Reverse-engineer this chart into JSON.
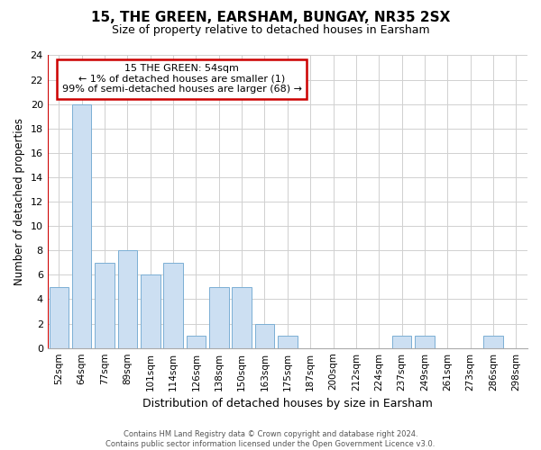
{
  "title": "15, THE GREEN, EARSHAM, BUNGAY, NR35 2SX",
  "subtitle": "Size of property relative to detached houses in Earsham",
  "xlabel": "Distribution of detached houses by size in Earsham",
  "ylabel": "Number of detached properties",
  "bar_labels": [
    "52sqm",
    "64sqm",
    "77sqm",
    "89sqm",
    "101sqm",
    "114sqm",
    "126sqm",
    "138sqm",
    "150sqm",
    "163sqm",
    "175sqm",
    "187sqm",
    "200sqm",
    "212sqm",
    "224sqm",
    "237sqm",
    "249sqm",
    "261sqm",
    "273sqm",
    "286sqm",
    "298sqm"
  ],
  "bar_values": [
    5,
    20,
    7,
    8,
    6,
    7,
    1,
    5,
    5,
    2,
    1,
    0,
    0,
    0,
    0,
    1,
    1,
    0,
    0,
    1,
    0
  ],
  "bar_color": "#ccdff2",
  "bar_edge_color": "#7bafd4",
  "red_line_x": 0,
  "red_line_color": "#cc0000",
  "ylim": [
    0,
    24
  ],
  "yticks": [
    0,
    2,
    4,
    6,
    8,
    10,
    12,
    14,
    16,
    18,
    20,
    22,
    24
  ],
  "annotation_title": "15 THE GREEN: 54sqm",
  "annotation_line1": "← 1% of detached houses are smaller (1)",
  "annotation_line2": "99% of semi-detached houses are larger (68) →",
  "annotation_box_color": "#ffffff",
  "annotation_box_edge_color": "#cc0000",
  "footer_line1": "Contains HM Land Registry data © Crown copyright and database right 2024.",
  "footer_line2": "Contains public sector information licensed under the Open Government Licence v3.0.",
  "grid_color": "#d0d0d0",
  "background_color": "#ffffff",
  "title_fontsize": 11,
  "subtitle_fontsize": 9
}
